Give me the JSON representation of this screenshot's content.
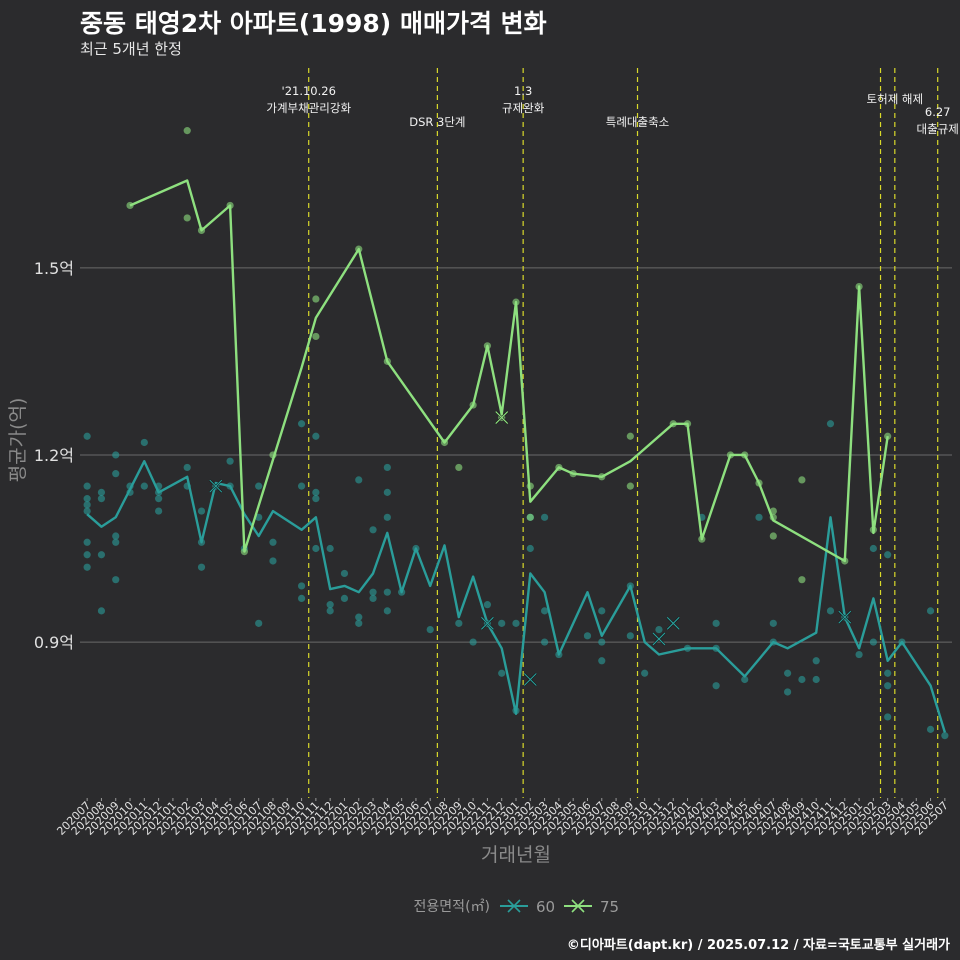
{
  "title": "중동 태영2차 아파트(1998) 매매가격 변화",
  "subtitle": "최근 5개년 한정",
  "caption": "©디아파트(dapt.kr) / 2025.07.12 / 자료=국토교통부 실거래가",
  "chart_data": {
    "type": "line",
    "xlabel": "거래년월",
    "ylabel": "평균가(억)",
    "ylim": [
      0.65,
      1.83
    ],
    "yticks": [
      {
        "value": 0.9,
        "label": "0.9억"
      },
      {
        "value": 1.2,
        "label": "1.2억"
      },
      {
        "value": 1.5,
        "label": "1.5억"
      }
    ],
    "grid": true,
    "legend": {
      "position": "bottom",
      "title": "전용면적(㎡)"
    },
    "categories": [
      "202007",
      "202008",
      "202009",
      "202010",
      "202011",
      "202012",
      "202101",
      "202102",
      "202103",
      "202104",
      "202105",
      "202106",
      "202107",
      "202108",
      "202109",
      "202110",
      "202111",
      "202112",
      "202201",
      "202202",
      "202203",
      "202204",
      "202205",
      "202206",
      "202207",
      "202208",
      "202209",
      "202210",
      "202211",
      "202212",
      "202301",
      "202302",
      "202303",
      "202304",
      "202305",
      "202306",
      "202307",
      "202308",
      "202309",
      "202310",
      "202311",
      "202312",
      "202401",
      "202402",
      "202403",
      "202404",
      "202405",
      "202406",
      "202407",
      "202408",
      "202409",
      "202410",
      "202411",
      "202412",
      "202501",
      "202502",
      "202503",
      "202504",
      "202505",
      "202506",
      "202507"
    ],
    "series": [
      {
        "name": "60",
        "color": "#2a9d9a",
        "line": [
          [
            0,
            1.105
          ],
          [
            1,
            1.085
          ],
          [
            2,
            1.1
          ],
          [
            3,
            1.145
          ],
          [
            4,
            1.19
          ],
          [
            5,
            1.14
          ],
          [
            7,
            1.165
          ],
          [
            8,
            1.06
          ],
          [
            9,
            1.155
          ],
          [
            10,
            1.15
          ],
          [
            11,
            1.105
          ],
          [
            12,
            1.07
          ],
          [
            13,
            1.11
          ],
          [
            15,
            1.08
          ],
          [
            16,
            1.1
          ],
          [
            17,
            0.985
          ],
          [
            18,
            0.99
          ],
          [
            19,
            0.98
          ],
          [
            20,
            1.01
          ],
          [
            21,
            1.075
          ],
          [
            22,
            0.98
          ],
          [
            23,
            1.05
          ],
          [
            24,
            0.99
          ],
          [
            25,
            1.055
          ],
          [
            26,
            0.94
          ],
          [
            27,
            1.005
          ],
          [
            28,
            0.93
          ],
          [
            29,
            0.89
          ],
          [
            30,
            0.785
          ],
          [
            31,
            1.01
          ],
          [
            32,
            0.98
          ],
          [
            33,
            0.88
          ],
          [
            34,
            0.93
          ],
          [
            35,
            0.98
          ],
          [
            36,
            0.91
          ],
          [
            38,
            0.99
          ],
          [
            39,
            0.9
          ],
          [
            40,
            0.88
          ],
          [
            42,
            0.89
          ],
          [
            44,
            0.89
          ],
          [
            46,
            0.845
          ],
          [
            48,
            0.9
          ],
          [
            49,
            0.89
          ],
          [
            51,
            0.915
          ],
          [
            52,
            1.1
          ],
          [
            53,
            0.94
          ],
          [
            54,
            0.89
          ],
          [
            55,
            0.97
          ],
          [
            56,
            0.87
          ],
          [
            57,
            0.9
          ],
          [
            59,
            0.83
          ],
          [
            60,
            0.755
          ]
        ],
        "points": [
          [
            0,
            1.23
          ],
          [
            0,
            1.15
          ],
          [
            0,
            1.13
          ],
          [
            0,
            1.12
          ],
          [
            0,
            1.11
          ],
          [
            0,
            1.06
          ],
          [
            0,
            1.04
          ],
          [
            0,
            1.02
          ],
          [
            1,
            1.14
          ],
          [
            1,
            1.13
          ],
          [
            1,
            1.04
          ],
          [
            1,
            0.95
          ],
          [
            2,
            1.2
          ],
          [
            2,
            1.17
          ],
          [
            2,
            1.07
          ],
          [
            2,
            1.06
          ],
          [
            2,
            1.0
          ],
          [
            3,
            1.15
          ],
          [
            3,
            1.14
          ],
          [
            4,
            1.22
          ],
          [
            4,
            1.15
          ],
          [
            5,
            1.15
          ],
          [
            5,
            1.14
          ],
          [
            5,
            1.13
          ],
          [
            5,
            1.11
          ],
          [
            7,
            1.18
          ],
          [
            7,
            1.15
          ],
          [
            8,
            1.11
          ],
          [
            8,
            1.06
          ],
          [
            8,
            1.02
          ],
          [
            9,
            1.15
          ],
          [
            10,
            1.19
          ],
          [
            10,
            1.15
          ],
          [
            11,
            1.05
          ],
          [
            12,
            1.15
          ],
          [
            12,
            1.1
          ],
          [
            12,
            0.93
          ],
          [
            13,
            1.06
          ],
          [
            13,
            1.03
          ],
          [
            15,
            1.25
          ],
          [
            15,
            1.15
          ],
          [
            15,
            0.99
          ],
          [
            15,
            0.97
          ],
          [
            16,
            1.23
          ],
          [
            16,
            1.14
          ],
          [
            16,
            1.13
          ],
          [
            16,
            1.05
          ],
          [
            17,
            1.05
          ],
          [
            17,
            0.96
          ],
          [
            17,
            0.95
          ],
          [
            18,
            1.01
          ],
          [
            18,
            0.97
          ],
          [
            19,
            1.16
          ],
          [
            19,
            0.94
          ],
          [
            19,
            0.93
          ],
          [
            20,
            1.08
          ],
          [
            20,
            0.98
          ],
          [
            20,
            0.97
          ],
          [
            21,
            1.18
          ],
          [
            21,
            1.14
          ],
          [
            21,
            1.1
          ],
          [
            21,
            0.98
          ],
          [
            21,
            0.95
          ],
          [
            22,
            0.98
          ],
          [
            23,
            1.05
          ],
          [
            24,
            0.92
          ],
          [
            26,
            0.93
          ],
          [
            27,
            0.9
          ],
          [
            28,
            0.93
          ],
          [
            28,
            0.96
          ],
          [
            29,
            0.93
          ],
          [
            29,
            0.85
          ],
          [
            30,
            0.93
          ],
          [
            30,
            0.79
          ],
          [
            31,
            1.1
          ],
          [
            31,
            1.05
          ],
          [
            32,
            1.1
          ],
          [
            32,
            0.95
          ],
          [
            32,
            0.9
          ],
          [
            33,
            0.88
          ],
          [
            35,
            0.91
          ],
          [
            36,
            0.95
          ],
          [
            36,
            0.9
          ],
          [
            36,
            0.87
          ],
          [
            38,
            0.99
          ],
          [
            38,
            0.91
          ],
          [
            39,
            0.85
          ],
          [
            40,
            0.92
          ],
          [
            42,
            0.89
          ],
          [
            43,
            1.1
          ],
          [
            44,
            0.93
          ],
          [
            44,
            0.89
          ],
          [
            44,
            0.83
          ],
          [
            46,
            0.84
          ],
          [
            47,
            1.1
          ],
          [
            48,
            0.93
          ],
          [
            48,
            0.9
          ],
          [
            49,
            0.85
          ],
          [
            49,
            0.82
          ],
          [
            50,
            0.84
          ],
          [
            51,
            0.87
          ],
          [
            51,
            0.84
          ],
          [
            52,
            1.25
          ],
          [
            52,
            0.95
          ],
          [
            53,
            0.94
          ],
          [
            54,
            0.88
          ],
          [
            55,
            1.05
          ],
          [
            55,
            0.9
          ],
          [
            56,
            1.04
          ],
          [
            56,
            0.85
          ],
          [
            56,
            0.83
          ],
          [
            56,
            0.78
          ],
          [
            57,
            0.9
          ],
          [
            59,
            0.95
          ],
          [
            59,
            0.76
          ],
          [
            60,
            0.75
          ]
        ],
        "crosses": [
          [
            9,
            1.15
          ],
          [
            28,
            0.93
          ],
          [
            31,
            0.84
          ],
          [
            40,
            0.905
          ],
          [
            41,
            0.93
          ],
          [
            53,
            0.94
          ]
        ]
      },
      {
        "name": "75",
        "color": "#8ee07f",
        "line": [
          [
            3,
            1.6
          ],
          [
            7,
            1.64
          ],
          [
            8,
            1.56
          ],
          [
            10,
            1.6
          ],
          [
            11,
            1.045
          ],
          [
            15,
            1.34
          ],
          [
            16,
            1.42
          ],
          [
            19,
            1.53
          ],
          [
            21,
            1.35
          ],
          [
            25,
            1.22
          ],
          [
            27,
            1.28
          ],
          [
            28,
            1.375
          ],
          [
            29,
            1.265
          ],
          [
            30,
            1.445
          ],
          [
            31,
            1.125
          ],
          [
            33,
            1.18
          ],
          [
            34,
            1.17
          ],
          [
            36,
            1.165
          ],
          [
            38,
            1.19
          ],
          [
            41,
            1.25
          ],
          [
            42,
            1.25
          ],
          [
            43,
            1.065
          ],
          [
            45,
            1.2
          ],
          [
            46,
            1.2
          ],
          [
            47,
            1.155
          ],
          [
            48,
            1.095
          ],
          [
            53,
            1.03
          ],
          [
            54,
            1.47
          ],
          [
            55,
            1.075
          ],
          [
            56,
            1.23
          ]
        ],
        "points": [
          [
            3,
            1.6
          ],
          [
            7,
            1.72
          ],
          [
            7,
            1.58
          ],
          [
            8,
            1.56
          ],
          [
            10,
            1.6
          ],
          [
            11,
            1.045
          ],
          [
            13,
            1.2
          ],
          [
            16,
            1.45
          ],
          [
            16,
            1.39
          ],
          [
            19,
            1.53
          ],
          [
            21,
            1.35
          ],
          [
            25,
            1.22
          ],
          [
            26,
            1.18
          ],
          [
            27,
            1.28
          ],
          [
            28,
            1.375
          ],
          [
            29,
            1.26
          ],
          [
            30,
            1.445
          ],
          [
            31,
            1.15
          ],
          [
            31,
            1.1
          ],
          [
            33,
            1.18
          ],
          [
            34,
            1.17
          ],
          [
            36,
            1.165
          ],
          [
            38,
            1.23
          ],
          [
            38,
            1.15
          ],
          [
            41,
            1.25
          ],
          [
            42,
            1.25
          ],
          [
            43,
            1.065
          ],
          [
            45,
            1.2
          ],
          [
            46,
            1.2
          ],
          [
            47,
            1.155
          ],
          [
            48,
            1.11
          ],
          [
            48,
            1.1
          ],
          [
            48,
            1.07
          ],
          [
            50,
            1.16
          ],
          [
            50,
            1.0
          ],
          [
            53,
            1.03
          ],
          [
            54,
            1.47
          ],
          [
            55,
            1.08
          ],
          [
            56,
            1.23
          ]
        ],
        "crosses": [
          [
            29,
            1.26
          ]
        ]
      }
    ],
    "annotations": [
      {
        "index": 15.5,
        "lines": [
          "'21.10.26",
          "가계부채관리강화"
        ],
        "row": 0
      },
      {
        "index": 24.5,
        "lines": [
          "DSR 3단계"
        ],
        "row": 2
      },
      {
        "index": 30.5,
        "lines": [
          "1.3",
          "규제완화"
        ],
        "row": 0
      },
      {
        "index": 38.5,
        "lines": [
          "특례대출축소"
        ],
        "row": 2
      },
      {
        "index": 55.5,
        "lines": [],
        "row": 1
      },
      {
        "index": 56.5,
        "lines": [
          "토허제 해제"
        ],
        "row": 1
      },
      {
        "index": 59.5,
        "lines": [
          "6.27",
          "대출규제"
        ],
        "row": 3
      }
    ]
  }
}
